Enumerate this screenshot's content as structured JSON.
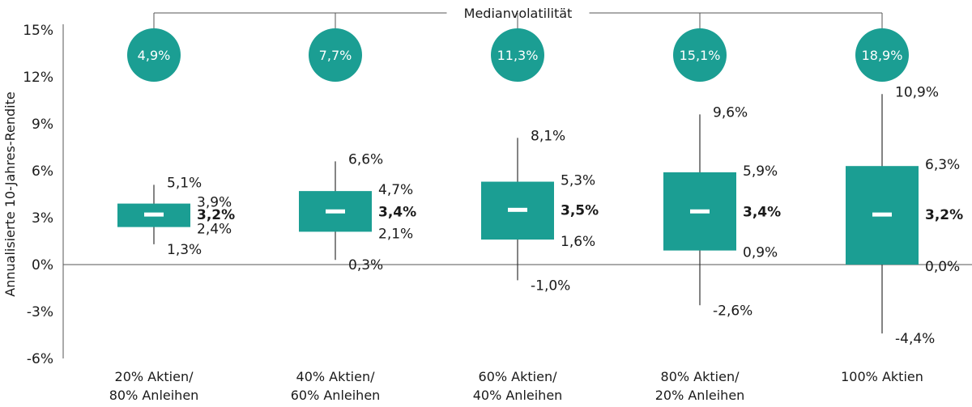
{
  "chart_data": {
    "type": "box",
    "ylabel": "Annualisierte 10-Jahres-Rendite",
    "ylim": [
      -6,
      15
    ],
    "yticks": [
      15,
      12,
      9,
      6,
      3,
      0,
      -3,
      -6
    ],
    "ytick_labels": [
      "15%",
      "12%",
      "9%",
      "6%",
      "3%",
      "0%",
      "-3%",
      "-6%"
    ],
    "bracket_label": "Medianvolatilität",
    "colors": {
      "box": "#1b9e93",
      "median": "#ffffff",
      "axis": "#555555",
      "text": "#1a1a1a"
    },
    "categories": [
      {
        "lines": [
          "20% Aktien/",
          "80% Anleihen"
        ],
        "volatility": "4,9%",
        "whisker_high": 5.1,
        "box_high": 3.9,
        "median": 3.2,
        "box_low": 2.4,
        "whisker_low": 1.3,
        "whisker_high_label": "5,1%",
        "box_high_label": "3,9%",
        "median_label": "3,2%",
        "box_low_label": "2,4%",
        "whisker_low_label": "1,3%"
      },
      {
        "lines": [
          "40% Aktien/",
          "60% Anleihen"
        ],
        "volatility": "7,7%",
        "whisker_high": 6.6,
        "box_high": 4.7,
        "median": 3.4,
        "box_low": 2.1,
        "whisker_low": 0.3,
        "whisker_high_label": "6,6%",
        "box_high_label": "4,7%",
        "median_label": "3,4%",
        "box_low_label": "2,1%",
        "whisker_low_label": "0,3%"
      },
      {
        "lines": [
          "60% Aktien/",
          "40% Anleihen"
        ],
        "volatility": "11,3%",
        "whisker_high": 8.1,
        "box_high": 5.3,
        "median": 3.5,
        "box_low": 1.6,
        "whisker_low": -1.0,
        "whisker_high_label": "8,1%",
        "box_high_label": "5,3%",
        "median_label": "3,5%",
        "box_low_label": "1,6%",
        "whisker_low_label": "-1,0%"
      },
      {
        "lines": [
          "80% Aktien/",
          "20% Anleihen"
        ],
        "volatility": "15,1%",
        "whisker_high": 9.6,
        "box_high": 5.9,
        "median": 3.4,
        "box_low": 0.9,
        "whisker_low": -2.6,
        "whisker_high_label": "9,6%",
        "box_high_label": "5,9%",
        "median_label": "3,4%",
        "box_low_label": "0,9%",
        "whisker_low_label": "-2,6%"
      },
      {
        "lines": [
          "100% Aktien"
        ],
        "volatility": "18,9%",
        "whisker_high": 10.9,
        "box_high": 6.3,
        "median": 3.2,
        "box_low": 0.0,
        "whisker_low": -4.4,
        "whisker_high_label": "10,9%",
        "box_high_label": "6,3%",
        "median_label": "3,2%",
        "box_low_label": "0,0%",
        "whisker_low_label": "-4,4%"
      }
    ]
  }
}
